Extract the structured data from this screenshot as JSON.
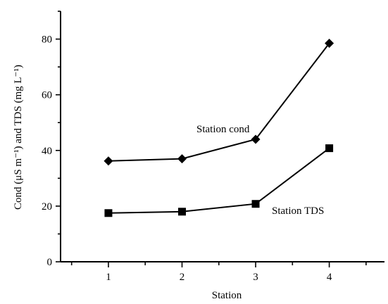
{
  "chart_data": {
    "type": "line",
    "xlabel": "Station",
    "ylabel": "Cond (μS m⁻¹) and TDS (mg L⁻¹)",
    "categories": [
      "1",
      "2",
      "3",
      "4"
    ],
    "x": [
      1,
      2,
      3,
      4
    ],
    "xlim": [
      0.35,
      4.75
    ],
    "ylim": [
      0,
      90
    ],
    "yticks": [
      "0",
      "20",
      "40",
      "60",
      "80"
    ],
    "grid": false,
    "legend": "none",
    "series": [
      {
        "name": "Station cond",
        "marker": "diamond",
        "values": [
          36.2,
          37.0,
          44.0,
          78.5
        ]
      },
      {
        "name": "Station TDS",
        "marker": "square",
        "values": [
          17.5,
          18.0,
          20.8,
          40.8
        ]
      }
    ]
  }
}
